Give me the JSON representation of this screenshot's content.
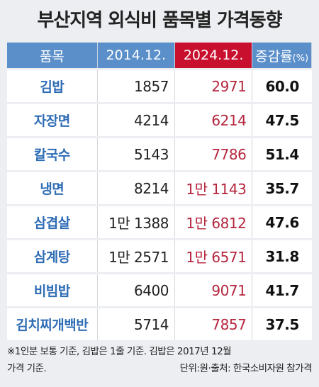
{
  "header": {
    "title": "부산지역 외식비 품목별 가격동향"
  },
  "table": {
    "columns": [
      {
        "text": "품목"
      },
      {
        "text": "2014.12."
      },
      {
        "text": "2024.12."
      },
      {
        "text": "증감률",
        "unit": "(%)"
      }
    ],
    "rows": [
      [
        "김밥",
        "1857",
        "2971",
        "60.0"
      ],
      [
        "자장면",
        "4214",
        "6214",
        "47.5"
      ],
      [
        "칼국수",
        "5143",
        "7786",
        "51.4"
      ],
      [
        "냉면",
        "8214",
        "1만 1143",
        "35.7"
      ],
      [
        "삼겹살",
        "1만 1388",
        "1만 6812",
        "47.6"
      ],
      [
        "삼계탕",
        "1만 2571",
        "1만 6571",
        "31.8"
      ],
      [
        "비빔밥",
        "6400",
        "9071",
        "41.7"
      ],
      [
        "김치찌개백반",
        "5714",
        "7857",
        "37.5"
      ]
    ]
  },
  "footnote": {
    "line1": "※1인분 보통 기준, 김밥은 1줄 기준. 김밥은 2017년 12월",
    "line2": "가격 기준.",
    "source": "단위:원·출처: 한국소비자원 참가격"
  }
}
